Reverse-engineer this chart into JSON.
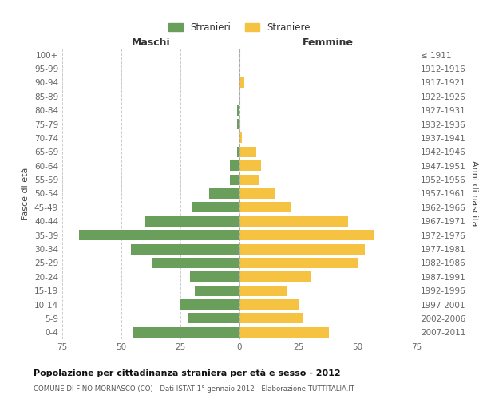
{
  "age_groups": [
    "100+",
    "95-99",
    "90-94",
    "85-89",
    "80-84",
    "75-79",
    "70-74",
    "65-69",
    "60-64",
    "55-59",
    "50-54",
    "45-49",
    "40-44",
    "35-39",
    "30-34",
    "25-29",
    "20-24",
    "15-19",
    "10-14",
    "5-9",
    "0-4"
  ],
  "birth_years": [
    "≤ 1911",
    "1912-1916",
    "1917-1921",
    "1922-1926",
    "1927-1931",
    "1932-1936",
    "1937-1941",
    "1942-1946",
    "1947-1951",
    "1952-1956",
    "1957-1961",
    "1962-1966",
    "1967-1971",
    "1972-1976",
    "1977-1981",
    "1982-1986",
    "1987-1991",
    "1992-1996",
    "1997-2001",
    "2002-2006",
    "2007-2011"
  ],
  "males": [
    0,
    0,
    0,
    0,
    1,
    1,
    0,
    1,
    4,
    4,
    13,
    20,
    40,
    68,
    46,
    37,
    21,
    19,
    25,
    22,
    45
  ],
  "females": [
    0,
    0,
    2,
    0,
    0,
    0,
    1,
    7,
    9,
    8,
    15,
    22,
    46,
    57,
    53,
    50,
    30,
    20,
    25,
    27,
    38
  ],
  "male_color": "#6a9f5b",
  "female_color": "#f5c242",
  "title": "Popolazione per cittadinanza straniera per età e sesso - 2012",
  "subtitle": "COMUNE DI FINO MORNASCO (CO) - Dati ISTAT 1° gennaio 2012 - Elaborazione TUTTITALIA.IT",
  "xlabel_left": "Maschi",
  "xlabel_right": "Femmine",
  "ylabel_left": "Fasce di età",
  "ylabel_right": "Anni di nascita",
  "legend_male": "Stranieri",
  "legend_female": "Straniere",
  "xlim": 75,
  "background_color": "#ffffff",
  "grid_color": "#cccccc"
}
